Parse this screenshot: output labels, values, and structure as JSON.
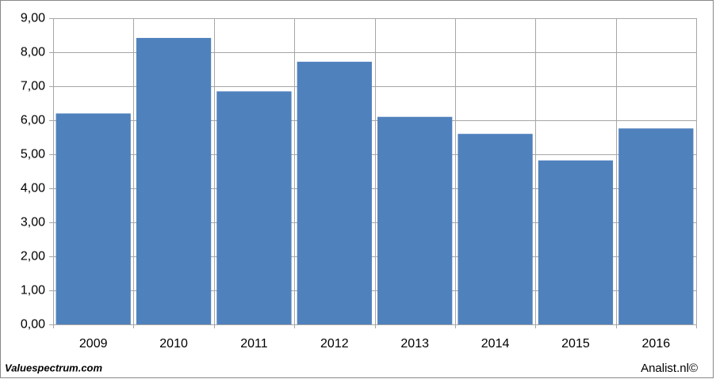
{
  "chart_data": {
    "type": "bar",
    "categories": [
      "2009",
      "2010",
      "2011",
      "2012",
      "2013",
      "2014",
      "2015",
      "2016"
    ],
    "values": [
      6.2,
      8.42,
      6.85,
      7.72,
      6.1,
      5.6,
      4.82,
      5.76
    ],
    "color": "#4f81bd",
    "ylim": [
      0,
      9
    ],
    "yticks": [
      {
        "value": 0,
        "label": "0,00"
      },
      {
        "value": 1,
        "label": "1,00"
      },
      {
        "value": 2,
        "label": "2,00"
      },
      {
        "value": 3,
        "label": "3,00"
      },
      {
        "value": 4,
        "label": "4,00"
      },
      {
        "value": 5,
        "label": "5,00"
      },
      {
        "value": 6,
        "label": "6,00"
      },
      {
        "value": 7,
        "label": "7,00"
      },
      {
        "value": 8,
        "label": "8,00"
      },
      {
        "value": 9,
        "label": "9,00"
      }
    ],
    "grid": true,
    "source": "Valuespectrum.com",
    "credit": "Analist.nl©"
  }
}
